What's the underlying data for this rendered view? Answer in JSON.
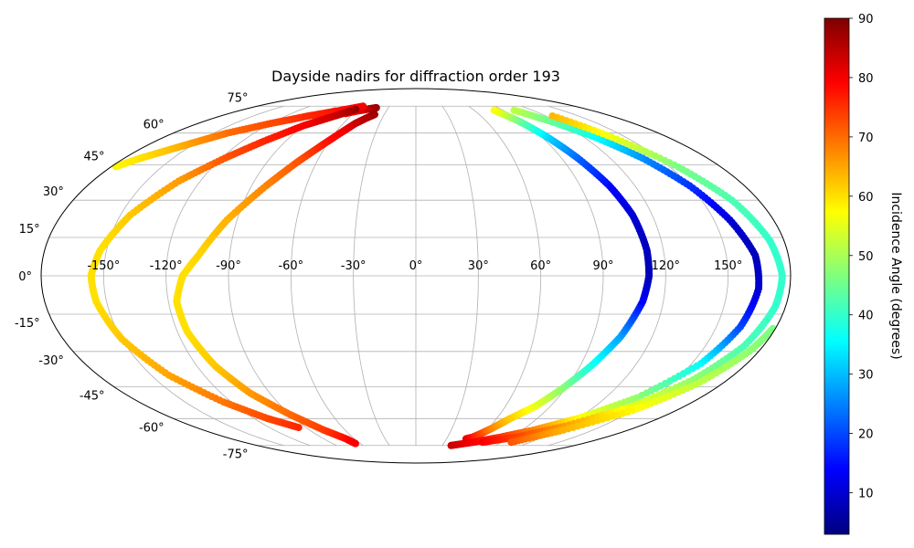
{
  "chart_data": {
    "type": "scatter",
    "projection": "mollweide",
    "title": "Dayside nadirs for diffraction order 193",
    "xlabel": "",
    "ylabel": "",
    "lon_tick_labels": [
      "-150°",
      "-120°",
      "-90°",
      "-60°",
      "-30°",
      "0°",
      "30°",
      "60°",
      "90°",
      "120°",
      "150°"
    ],
    "lat_tick_labels": [
      "75°",
      "60°",
      "45°",
      "30°",
      "15°",
      "0°",
      "-15°",
      "-30°",
      "-45°",
      "-60°",
      "-75°"
    ],
    "grid": true,
    "colormap": "jet",
    "colorbar": {
      "label": "Incidence Angle (degrees)",
      "range": [
        3,
        90
      ],
      "tick_labels": [
        "10",
        "20",
        "30",
        "40",
        "50",
        "60",
        "70",
        "80",
        "90"
      ],
      "placement": "right"
    },
    "series": [
      {
        "lon": [
          -43,
          -48,
          -52,
          -56,
          -60,
          -63,
          -66,
          -68
        ],
        "lat": [
          74,
          73.5,
          73,
          72.5,
          72,
          71.5,
          71,
          70.5
        ],
        "incidence": [
          88,
          87,
          85,
          83,
          82,
          80,
          79,
          78
        ]
      },
      {
        "lon": [
          -60,
          -80,
          -100,
          -120,
          -140,
          -150,
          -160,
          -170,
          -178
        ],
        "lat": [
          75,
          72,
          69,
          65,
          60,
          56,
          52,
          48,
          44
        ],
        "incidence": [
          80,
          78,
          76,
          73,
          70,
          67,
          63,
          60,
          58
        ]
      },
      {
        "lon": [
          -63,
          -75,
          -90,
          -105,
          -118,
          -132,
          -145,
          -153,
          -156,
          -155,
          -150,
          -140,
          -125,
          -110,
          -95
        ],
        "lat": [
          73,
          69,
          64,
          56,
          48,
          38,
          24,
          10,
          0,
          -10,
          -25,
          -40,
          -52,
          -60,
          -65
        ],
        "incidence": [
          88,
          84,
          80,
          76,
          72,
          66,
          62,
          60,
          60,
          60,
          62,
          65,
          69,
          73,
          76
        ]
      },
      {
        "lon": [
          -39,
          -44,
          -50,
          -56,
          -63,
          -72,
          -82,
          -95,
          -105,
          -112,
          -116,
          -115,
          -110,
          -102,
          -90,
          -78,
          -68,
          -65
        ],
        "lat": [
          70,
          68,
          65,
          60,
          54,
          46,
          36,
          22,
          8,
          0,
          -10,
          -22,
          -36,
          -48,
          -58,
          -66,
          -71,
          -74
        ],
        "incidence": [
          88,
          86,
          84,
          80,
          77,
          72,
          68,
          64,
          61,
          60,
          60,
          60,
          62,
          66,
          70,
          74,
          78,
          80
        ]
      },
      {
        "lon": [
          49,
          54,
          58,
          63,
          70,
          80,
          88,
          96,
          104,
          110,
          112,
          112,
          110,
          106,
          100,
          94,
          88,
          80
        ],
        "lat": [
          -71,
          -70,
          -68,
          -65,
          -60,
          -54,
          -46,
          -36,
          -24,
          -10,
          0,
          10,
          24,
          36,
          48,
          58,
          66,
          73
        ],
        "incidence": [
          82,
          78,
          74,
          68,
          62,
          56,
          48,
          38,
          28,
          14,
          8,
          8,
          10,
          14,
          22,
          32,
          44,
          58
        ]
      },
      {
        "lon": [
          40,
          60,
          80,
          100,
          120,
          140,
          155,
          162,
          165,
          164,
          158,
          150,
          140,
          128,
          115,
          100
        ],
        "lat": [
          -75,
          -73,
          -70,
          -66,
          -60,
          -50,
          -35,
          -20,
          -5,
          8,
          22,
          36,
          48,
          58,
          66,
          73
        ],
        "incidence": [
          84,
          80,
          75,
          68,
          58,
          48,
          36,
          20,
          10,
          8,
          10,
          18,
          26,
          36,
          44,
          52
        ]
      },
      {
        "lon": [
          70,
          95,
          120,
          145,
          160,
          170,
          175,
          176,
          173,
          166,
          155,
          140,
          125
        ],
        "lat": [
          -73,
          -70,
          -64,
          -54,
          -42,
          -28,
          -12,
          0,
          14,
          30,
          44,
          58,
          70
        ],
        "incidence": [
          80,
          74,
          66,
          56,
          48,
          42,
          40,
          40,
          40,
          42,
          46,
          56,
          64
        ]
      },
      {
        "lon": [
          100,
          125,
          150,
          165,
          175,
          179
        ],
        "lat": [
          -73,
          -66,
          -56,
          -44,
          -30,
          -20
        ],
        "incidence": [
          72,
          64,
          58,
          52,
          48,
          46
        ]
      }
    ]
  }
}
